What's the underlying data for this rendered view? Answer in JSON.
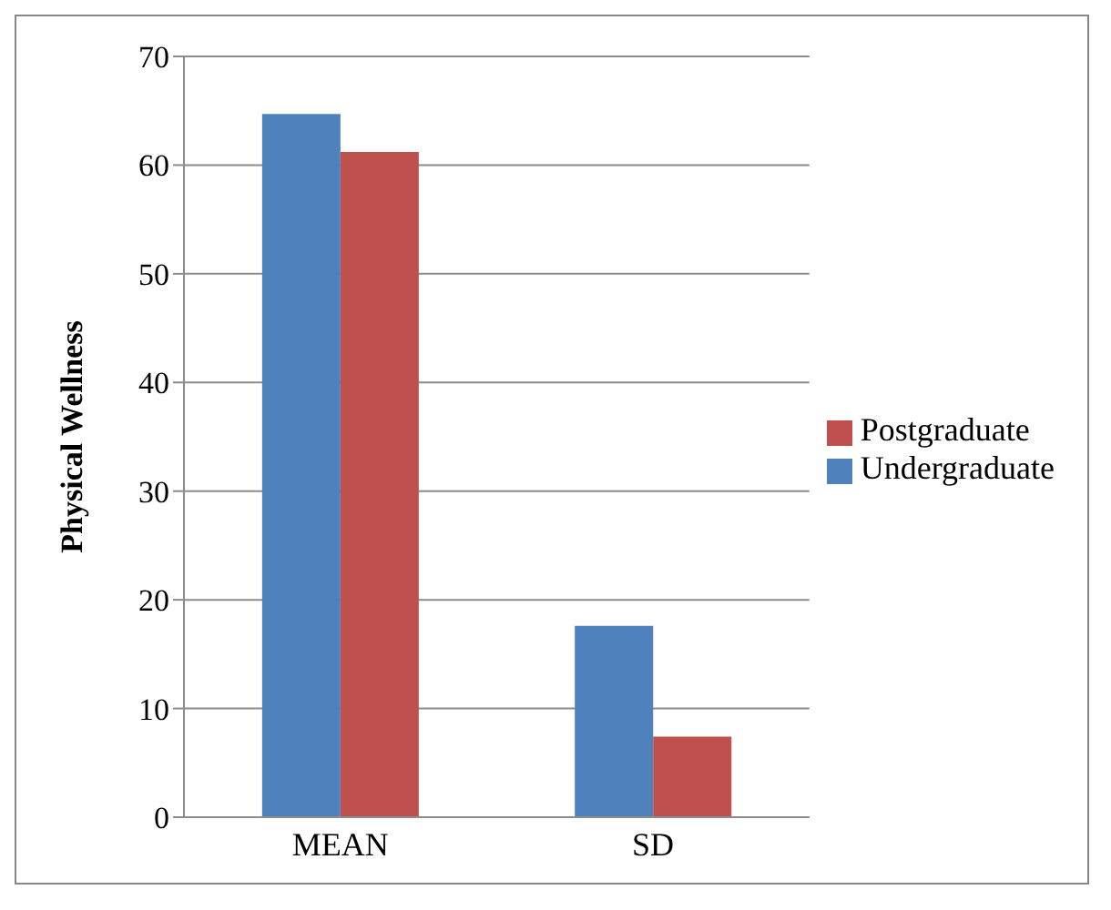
{
  "chart_data": {
    "type": "bar",
    "ylabel": "Physical Wellness",
    "categories": [
      "MEAN",
      "SD"
    ],
    "series": [
      {
        "name": "Undergraduate",
        "color": "#4f81bd",
        "values": [
          64.7,
          17.6
        ]
      },
      {
        "name": "Postgraduate",
        "color": "#c0504d",
        "values": [
          61.2,
          7.4
        ]
      }
    ],
    "ylim": [
      0,
      70
    ],
    "yticks": [
      0,
      10,
      20,
      30,
      40,
      50,
      60,
      70
    ],
    "grid": "y",
    "legend": "right"
  }
}
